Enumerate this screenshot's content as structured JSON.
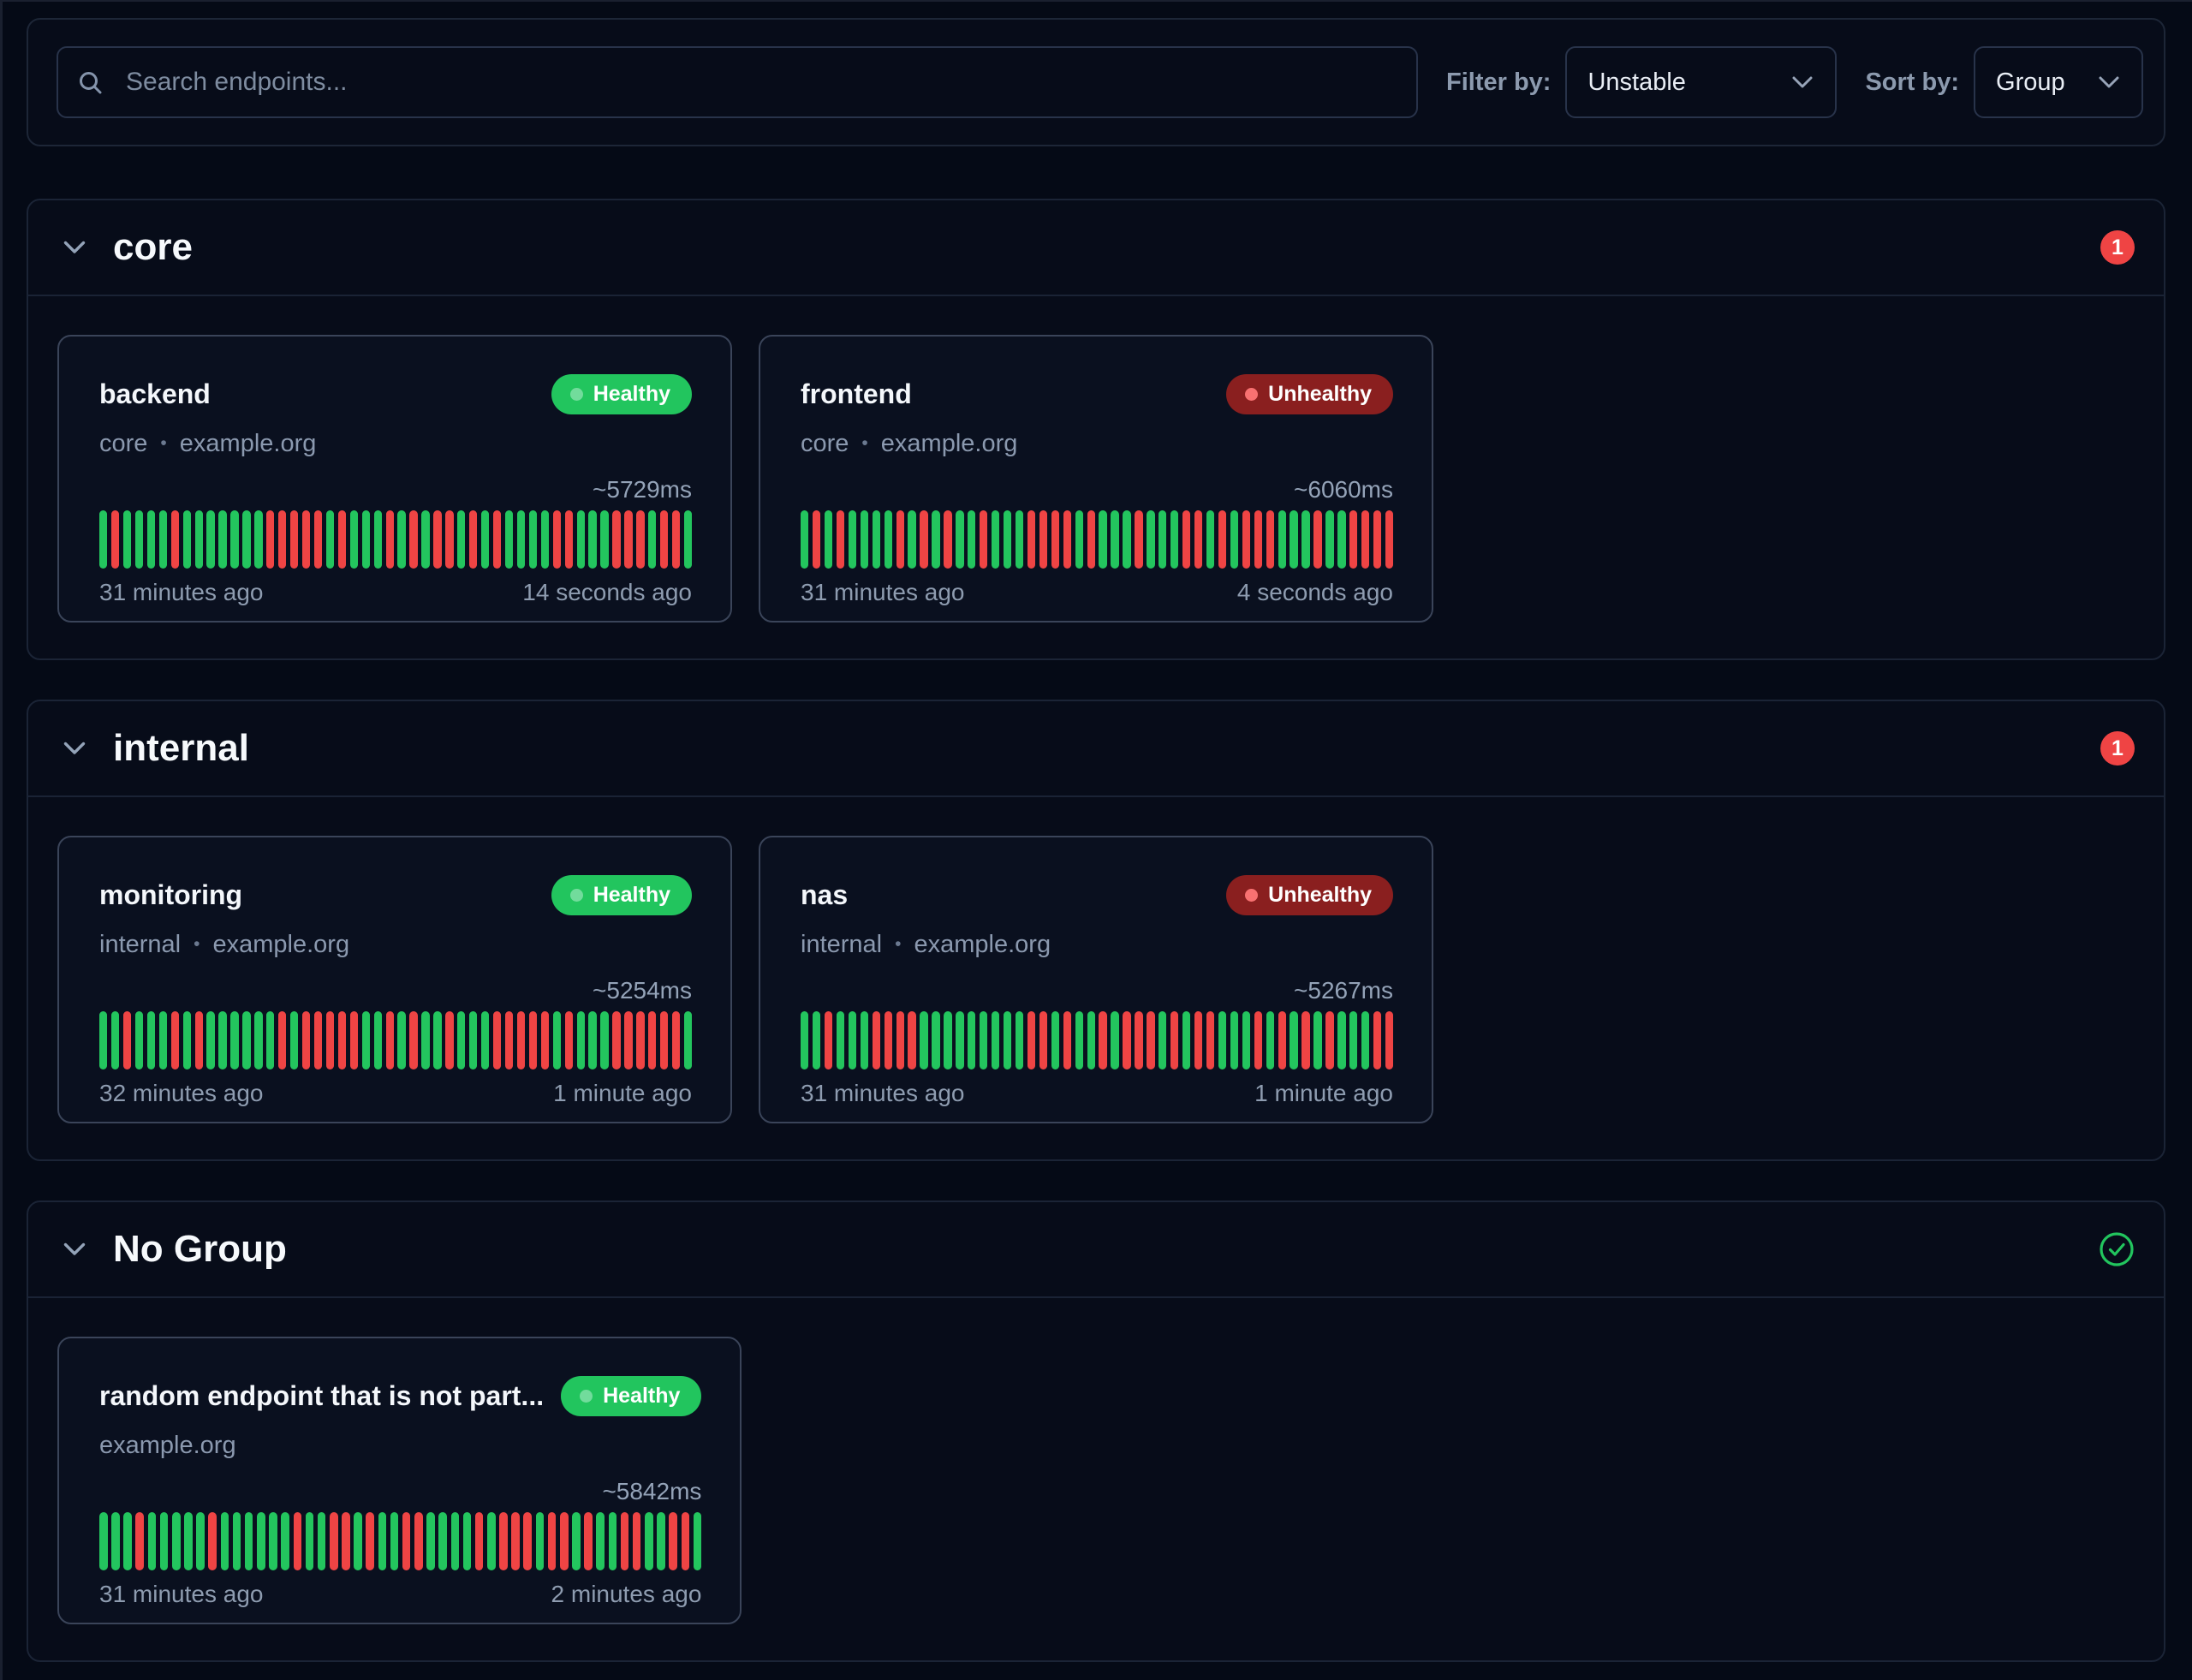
{
  "toolbar": {
    "search_placeholder": "Search endpoints...",
    "filter_label": "Filter by:",
    "filter_value": "Unstable",
    "sort_label": "Sort by:",
    "sort_value": "Group"
  },
  "colors": {
    "healthy_green": "#22c55e",
    "unhealthy_red": "#ef4444",
    "unhealthy_badge_bg": "#8a1f1f",
    "background": "#050a16"
  },
  "legend": {
    "bar_green_means": "successful check",
    "bar_red_means": "failed check"
  },
  "groups": [
    {
      "name": "core",
      "badge_type": "count",
      "badge_count": "1",
      "endpoints": [
        {
          "name": "backend",
          "group": "core",
          "host": "example.org",
          "status": "Healthy",
          "status_type": "healthy",
          "response_time": "~5729ms",
          "oldest": "31 minutes ago",
          "newest": "14 seconds ago",
          "bars": "grggggrgggggggrrrrrgrgggrgrgrrgrgrggggrrgggrrrgrrg"
        },
        {
          "name": "frontend",
          "group": "core",
          "host": "example.org",
          "status": "Unhealthy",
          "status_type": "unhealthy",
          "response_time": "~6060ms",
          "oldest": "31 minutes ago",
          "newest": "4 seconds ago",
          "bars": "grgrggggrgrgrggrgggrrrrgrgggrgggrrgrgrrrgggrggrrrr"
        }
      ]
    },
    {
      "name": "internal",
      "badge_type": "count",
      "badge_count": "1",
      "endpoints": [
        {
          "name": "monitoring",
          "group": "internal",
          "host": "example.org",
          "status": "Healthy",
          "status_type": "healthy",
          "response_time": "~5254ms",
          "oldest": "32 minutes ago",
          "newest": "1 minute ago",
          "bars": "ggrgggrgrggggggrgrrrrrggrgrggrgggrrrrrgrgggrrrrrrg"
        },
        {
          "name": "nas",
          "group": "internal",
          "host": "example.org",
          "status": "Unhealthy",
          "status_type": "unhealthy",
          "response_time": "~5267ms",
          "oldest": "31 minutes ago",
          "newest": "1 minute ago",
          "bars": "ggrgggrrrrgggggggggrrgrggrgrrrgrgrrgggrgrgrgrgggrr"
        }
      ]
    },
    {
      "name": "No Group",
      "badge_type": "check",
      "badge_count": "",
      "endpoints": [
        {
          "name": "random endpoint that is not part...",
          "group": "",
          "host": "example.org",
          "status": "Healthy",
          "status_type": "healthy",
          "response_time": "~5842ms",
          "oldest": "31 minutes ago",
          "newest": "2 minutes ago",
          "bars": "gggrgggggrggggggrggrrgrggrrggggrgrrrgrrgrggrrggrrg"
        }
      ]
    }
  ]
}
